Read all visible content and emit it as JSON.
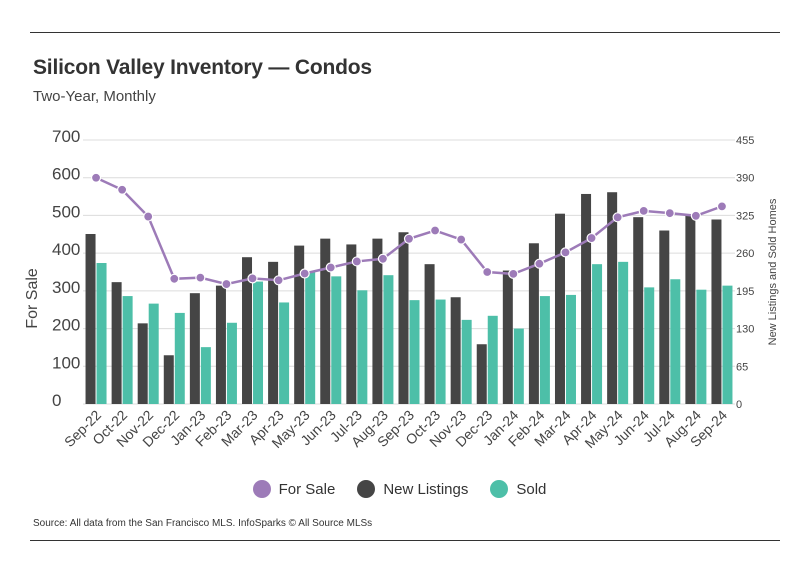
{
  "header": {
    "title": "Silicon Valley Inventory — Condos",
    "subtitle": "Two-Year, Monthly"
  },
  "legend": {
    "items": [
      {
        "label": "For Sale",
        "color": "#9d7bb8"
      },
      {
        "label": "New Listings",
        "color": "#454545"
      },
      {
        "label": "Sold",
        "color": "#4dbfa8"
      }
    ]
  },
  "source": "Source:  All data from the San Francisco MLS. InfoSparks © All Source MLSs",
  "chart_data": {
    "type": "bar",
    "categories": [
      "Sep-22",
      "Oct-22",
      "Nov-22",
      "Dec-22",
      "Jan-23",
      "Feb-23",
      "Mar-23",
      "Apr-23",
      "May-23",
      "Jun-23",
      "Jul-23",
      "Aug-23",
      "Sep-23",
      "Oct-23",
      "Nov-23",
      "Dec-23",
      "Jan-24",
      "Feb-24",
      "Mar-24",
      "Apr-24",
      "May-24",
      "Jun-24",
      "Jul-24",
      "Aug-24",
      "Sep-24"
    ],
    "series": [
      {
        "name": "New Listings",
        "axis": "right",
        "render": "bar",
        "color": "#454545",
        "values": [
          293,
          210,
          139,
          84,
          191,
          204,
          253,
          245,
          273,
          285,
          275,
          285,
          296,
          241,
          184,
          103,
          230,
          277,
          328,
          362,
          365,
          322,
          299,
          325,
          318
        ]
      },
      {
        "name": "Sold",
        "axis": "right",
        "render": "bar",
        "color": "#4dbfa8",
        "values": [
          243,
          186,
          173,
          157,
          98,
          140,
          211,
          175,
          227,
          220,
          196,
          222,
          179,
          180,
          145,
          152,
          130,
          186,
          188,
          241,
          245,
          201,
          215,
          197,
          204
        ]
      },
      {
        "name": "For Sale",
        "axis": "left",
        "render": "line",
        "color": "#9d7bb8",
        "values": [
          600,
          568,
          497,
          332,
          335,
          318,
          333,
          328,
          346,
          362,
          378,
          385,
          438,
          460,
          436,
          350,
          345,
          372,
          402,
          440,
          495,
          512,
          506,
          499,
          524
        ]
      }
    ],
    "left_axis": {
      "label": "For Sale",
      "ticks": [
        0,
        100,
        200,
        300,
        400,
        500,
        600,
        700
      ],
      "range": [
        0,
        700
      ]
    },
    "right_axis": {
      "label": "New Listings and Sold Homes",
      "ticks": [
        0,
        65,
        130,
        195,
        260,
        325,
        390,
        455
      ],
      "range": [
        0,
        455
      ]
    },
    "grid": true,
    "legend_position": "bottom"
  }
}
